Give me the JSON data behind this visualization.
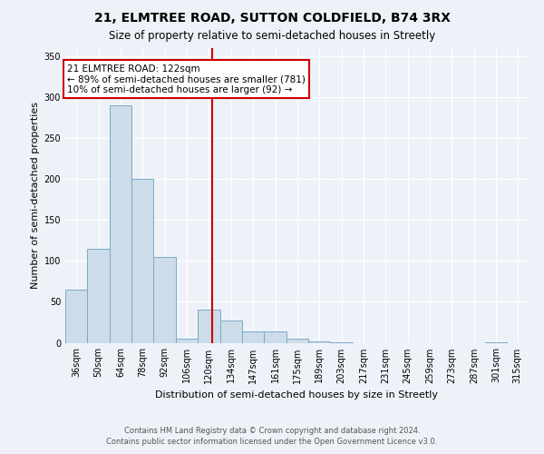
{
  "title": "21, ELMTREE ROAD, SUTTON COLDFIELD, B74 3RX",
  "subtitle": "Size of property relative to semi-detached houses in Streetly",
  "xlabel": "Distribution of semi-detached houses by size in Streetly",
  "ylabel": "Number of semi-detached properties",
  "footnote1": "Contains HM Land Registry data © Crown copyright and database right 2024.",
  "footnote2": "Contains public sector information licensed under the Open Government Licence v3.0.",
  "annotation_title": "21 ELMTREE ROAD: 122sqm",
  "annotation_line1": "← 89% of semi-detached houses are smaller (781)",
  "annotation_line2": "10% of semi-detached houses are larger (92) →",
  "property_size_sqm": 122,
  "bar_labels": [
    "36sqm",
    "50sqm",
    "64sqm",
    "78sqm",
    "92sqm",
    "106sqm",
    "120sqm",
    "134sqm",
    "147sqm",
    "161sqm",
    "175sqm",
    "189sqm",
    "203sqm",
    "217sqm",
    "231sqm",
    "245sqm",
    "259sqm",
    "273sqm",
    "287sqm",
    "301sqm",
    "315sqm"
  ],
  "bar_values": [
    65,
    115,
    290,
    200,
    105,
    5,
    40,
    27,
    14,
    14,
    5,
    2,
    1,
    0,
    0,
    0,
    0,
    0,
    0,
    1,
    0
  ],
  "bin_edges": [
    29,
    43,
    57,
    71,
    85,
    99,
    113,
    127,
    141,
    155,
    169,
    183,
    197,
    211,
    225,
    239,
    253,
    267,
    281,
    295,
    309,
    322
  ],
  "bar_color": "#ccdce8",
  "bar_edge_color": "#7aaac8",
  "highlight_line_color": "#cc0000",
  "annotation_box_color": "#cc0000",
  "background_color": "#eef2f8",
  "grid_color": "#ffffff",
  "ylim": [
    0,
    360
  ],
  "yticks": [
    0,
    50,
    100,
    150,
    200,
    250,
    300,
    350
  ],
  "title_fontsize": 10,
  "subtitle_fontsize": 8.5,
  "ylabel_fontsize": 8,
  "xlabel_fontsize": 8,
  "tick_fontsize": 7,
  "footnote_fontsize": 6,
  "annotation_fontsize": 7.5
}
